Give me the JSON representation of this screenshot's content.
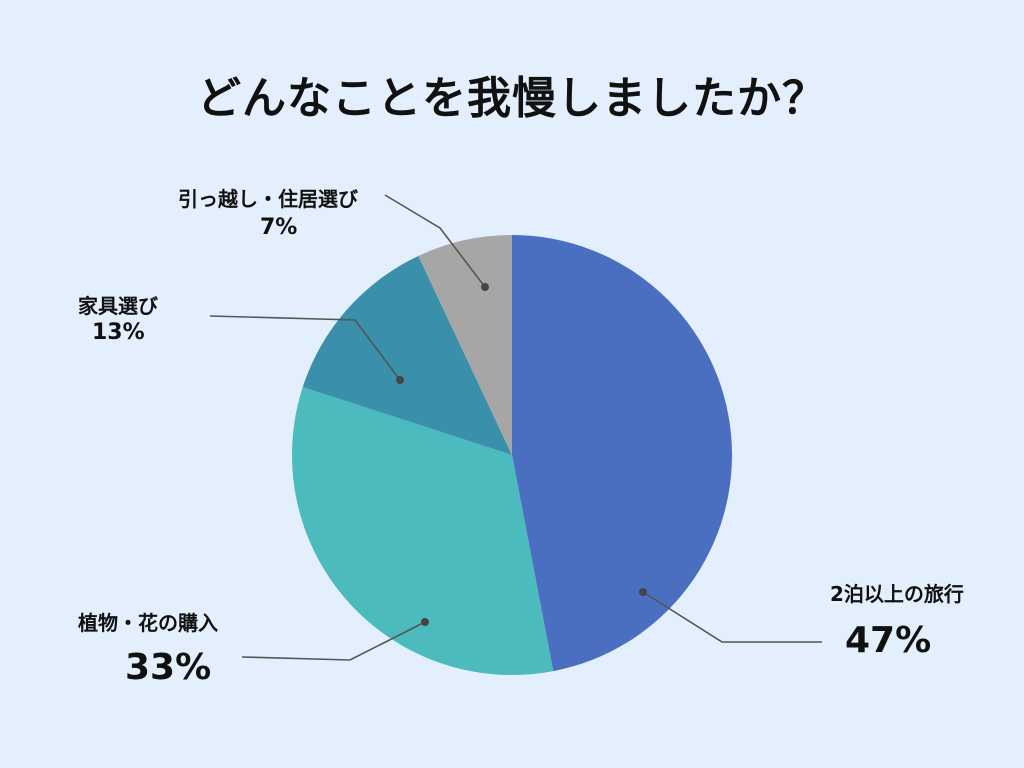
{
  "title": "どんなことを我慢しましたか？",
  "chart_data": {
    "type": "pie",
    "title": "どんなことを我慢しましたか？",
    "slices": [
      {
        "label": "2泊以上の旅行",
        "value": 47,
        "display": "47%",
        "color": "#4a6fc1"
      },
      {
        "label": "植物・花の購入",
        "value": 33,
        "display": "33%",
        "color": "#4bbbbe"
      },
      {
        "label": "家具選び",
        "value": 13,
        "display": "13%",
        "color": "#3a8fab"
      },
      {
        "label": "引っ越し・住居選び",
        "value": 7,
        "display": "7%",
        "color": "#a6a6a6"
      }
    ]
  }
}
